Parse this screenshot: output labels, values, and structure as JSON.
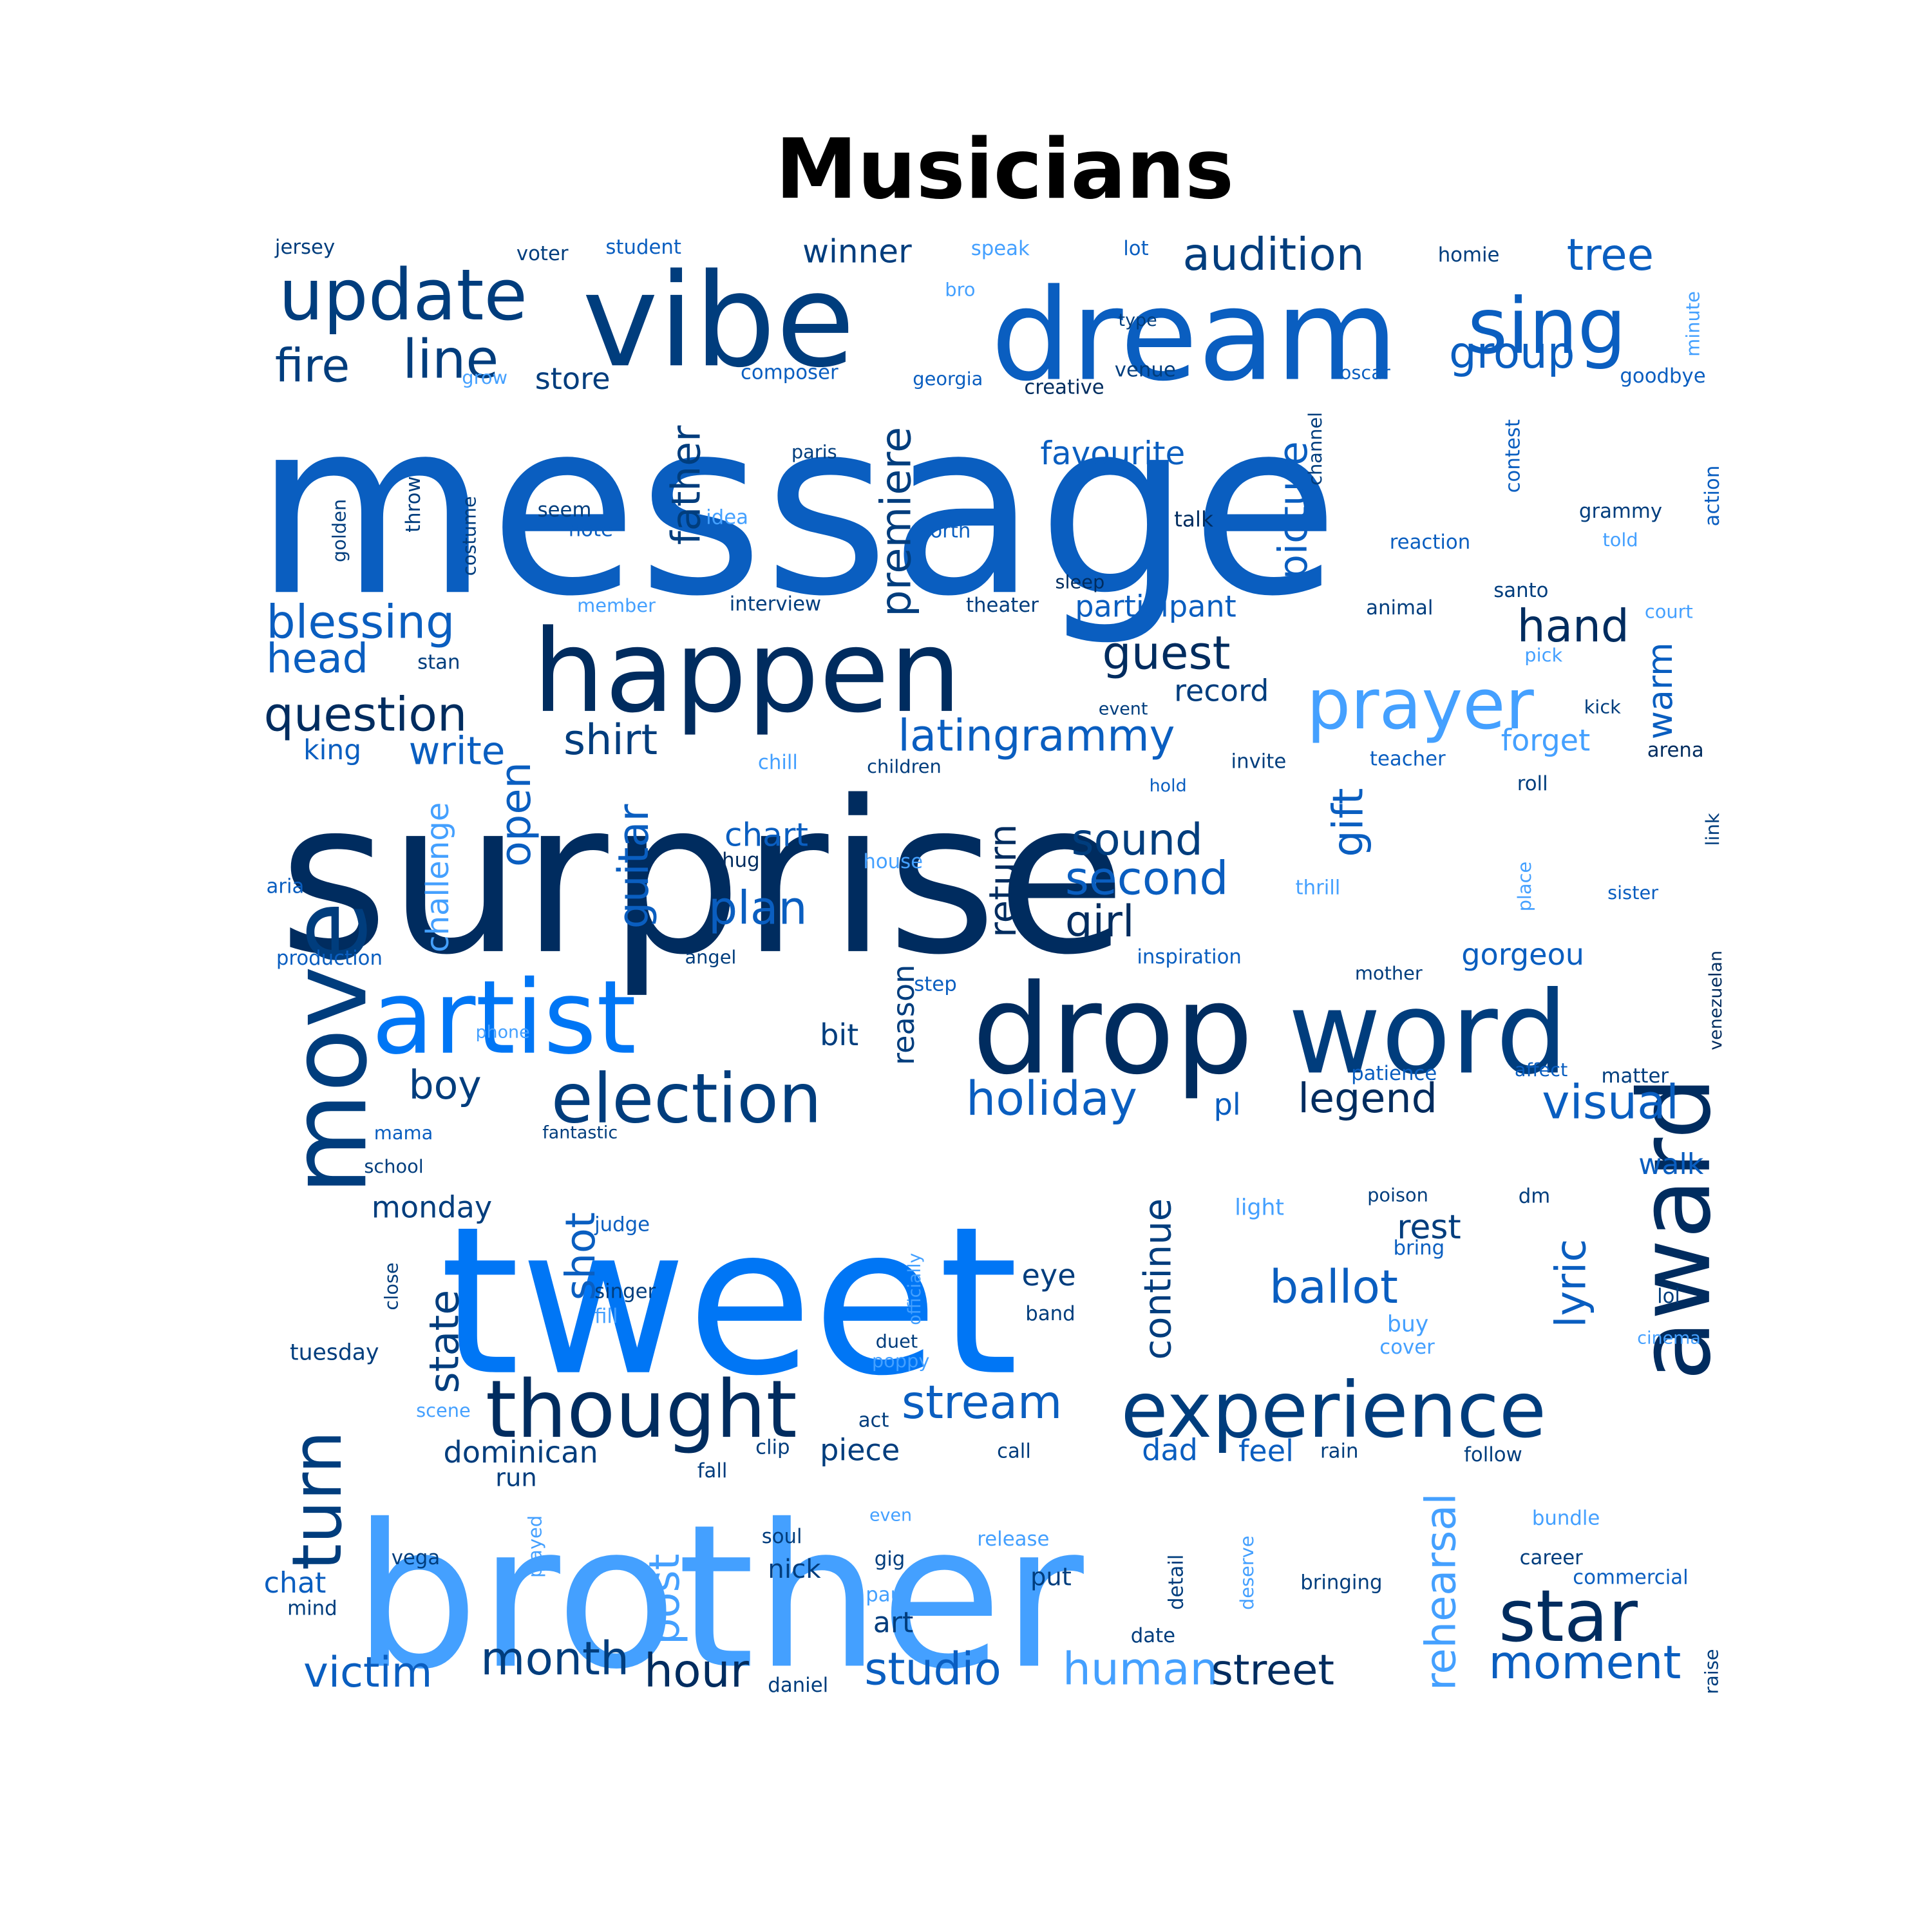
{
  "title": "Musicians",
  "palette": {
    "navy": "#002c5f",
    "dark": "#003d7d",
    "mid": "#0a5ec0",
    "bright": "#0076f5",
    "light": "#44a0ff"
  },
  "words": [
    {
      "text": "message",
      "size": 195,
      "color": "mid"
    },
    {
      "text": "surprise",
      "size": 170,
      "color": "navy"
    },
    {
      "text": "tweet",
      "size": 165,
      "color": "bright"
    },
    {
      "text": "brother",
      "size": 160,
      "color": "light"
    },
    {
      "text": "dream",
      "size": 70,
      "color": "mid"
    },
    {
      "text": "vibe",
      "size": 70,
      "color": "dark"
    },
    {
      "text": "happen",
      "size": 65,
      "color": "navy"
    },
    {
      "text": "artist",
      "size": 60,
      "color": "bright"
    },
    {
      "text": "drop",
      "size": 60,
      "color": "navy"
    },
    {
      "text": "word",
      "size": 60,
      "color": "dark"
    },
    {
      "text": "move",
      "size": 60,
      "color": "dark"
    },
    {
      "text": "award",
      "size": 55,
      "color": "navy"
    },
    {
      "text": "thought",
      "size": 50,
      "color": "navy"
    },
    {
      "text": "experience",
      "size": 50,
      "color": "dark"
    },
    {
      "text": "sing",
      "size": 50,
      "color": "mid"
    },
    {
      "text": "update",
      "size": 45,
      "color": "dark"
    },
    {
      "text": "prayer",
      "size": 45,
      "color": "light"
    },
    {
      "text": "election",
      "size": 45,
      "color": "dark"
    },
    {
      "text": "star",
      "size": 45,
      "color": "navy"
    },
    {
      "text": "turn",
      "size": 40,
      "color": "dark"
    },
    {
      "text": "blessing",
      "size": 30,
      "color": "mid"
    },
    {
      "text": "question",
      "size": 30,
      "color": "navy"
    },
    {
      "text": "premiere",
      "size": 30,
      "color": "dark"
    },
    {
      "text": "picture",
      "size": 30,
      "color": "mid"
    },
    {
      "text": "line",
      "size": 30,
      "color": "dark"
    },
    {
      "text": "audition",
      "size": 28,
      "color": "dark"
    },
    {
      "text": "guest",
      "size": 28,
      "color": "navy"
    },
    {
      "text": "tree",
      "size": 28,
      "color": "mid"
    },
    {
      "text": "group",
      "size": 28,
      "color": "mid"
    },
    {
      "text": "hand",
      "size": 28,
      "color": "navy"
    },
    {
      "text": "latingrammy",
      "size": 28,
      "color": "mid"
    },
    {
      "text": "shirt",
      "size": 28,
      "color": "dark"
    },
    {
      "text": "ballot",
      "size": 28,
      "color": "mid"
    },
    {
      "text": "stream",
      "size": 28,
      "color": "mid"
    },
    {
      "text": "father",
      "size": 28,
      "color": "dark"
    },
    {
      "text": "head",
      "size": 28,
      "color": "mid"
    },
    {
      "text": "fire",
      "size": 28,
      "color": "dark"
    },
    {
      "text": "second",
      "size": 28,
      "color": "mid"
    },
    {
      "text": "sound",
      "size": 28,
      "color": "dark"
    },
    {
      "text": "girl",
      "size": 28,
      "color": "navy"
    },
    {
      "text": "plan",
      "size": 28,
      "color": "mid"
    },
    {
      "text": "return",
      "size": 28,
      "color": "navy"
    },
    {
      "text": "guitar",
      "size": 28,
      "color": "mid"
    },
    {
      "text": "open",
      "size": 28,
      "color": "mid"
    },
    {
      "text": "holiday",
      "size": 28,
      "color": "mid"
    },
    {
      "text": "legend",
      "size": 28,
      "color": "navy"
    },
    {
      "text": "visual",
      "size": 28,
      "color": "mid"
    },
    {
      "text": "continue",
      "size": 28,
      "color": "dark"
    },
    {
      "text": "lyric",
      "size": 28,
      "color": "mid"
    },
    {
      "text": "post",
      "size": 28,
      "color": "light"
    },
    {
      "text": "rehearsal",
      "size": 28,
      "color": "light"
    },
    {
      "text": "moment",
      "size": 28,
      "color": "mid"
    },
    {
      "text": "studio",
      "size": 28,
      "color": "mid"
    },
    {
      "text": "human",
      "size": 28,
      "color": "light"
    },
    {
      "text": "street",
      "size": 28,
      "color": "navy"
    },
    {
      "text": "hour",
      "size": 28,
      "color": "navy"
    },
    {
      "text": "month",
      "size": 28,
      "color": "dark"
    },
    {
      "text": "victim",
      "size": 28,
      "color": "mid"
    },
    {
      "text": "state",
      "size": 28,
      "color": "dark"
    },
    {
      "text": "shot",
      "size": 28,
      "color": "mid"
    },
    {
      "text": "write",
      "size": 24,
      "color": "mid"
    },
    {
      "text": "boy",
      "size": 24,
      "color": "dark"
    },
    {
      "text": "gift",
      "size": 24,
      "color": "mid"
    },
    {
      "text": "warm",
      "size": 22,
      "color": "mid"
    },
    {
      "text": "rest",
      "size": 22,
      "color": "dark"
    },
    {
      "text": "favourite",
      "size": 22,
      "color": "mid"
    },
    {
      "text": "participant",
      "size": 22,
      "color": "mid"
    },
    {
      "text": "record",
      "size": 22,
      "color": "dark"
    },
    {
      "text": "chart",
      "size": 22,
      "color": "mid"
    },
    {
      "text": "winner",
      "size": 22,
      "color": "dark"
    },
    {
      "text": "store",
      "size": 22,
      "color": "dark"
    },
    {
      "text": "king",
      "size": 22,
      "color": "mid"
    },
    {
      "text": "challenge",
      "size": 22,
      "color": "light"
    },
    {
      "text": "forget",
      "size": 22,
      "color": "light"
    },
    {
      "text": "gorgeou",
      "size": 22,
      "color": "mid"
    },
    {
      "text": "bit",
      "size": 22,
      "color": "dark"
    },
    {
      "text": "reason",
      "size": 22,
      "color": "dark"
    },
    {
      "text": "pl",
      "size": 22,
      "color": "mid"
    },
    {
      "text": "eye",
      "size": 22,
      "color": "dark"
    },
    {
      "text": "monday",
      "size": 22,
      "color": "dark"
    },
    {
      "text": "walk",
      "size": 22,
      "color": "mid"
    },
    {
      "text": "feel",
      "size": 22,
      "color": "mid"
    },
    {
      "text": "dad",
      "size": 22,
      "color": "mid"
    },
    {
      "text": "piece",
      "size": 22,
      "color": "dark"
    },
    {
      "text": "dominican",
      "size": 22,
      "color": "dark"
    },
    {
      "text": "run",
      "size": 22,
      "color": "dark"
    },
    {
      "text": "chat",
      "size": 22,
      "color": "mid"
    },
    {
      "text": "art",
      "size": 22,
      "color": "dark"
    },
    {
      "text": "nick",
      "size": 20,
      "color": "dark"
    },
    {
      "text": "put",
      "size": 20,
      "color": "dark"
    },
    {
      "text": "buy",
      "size": 18,
      "color": "light"
    },
    {
      "text": "jersey",
      "size": 16,
      "color": "dark"
    },
    {
      "text": "voter",
      "size": 16,
      "color": "dark"
    },
    {
      "text": "student",
      "size": 16,
      "color": "mid"
    },
    {
      "text": "speak",
      "size": 16,
      "color": "light"
    },
    {
      "text": "lot",
      "size": 16,
      "color": "mid"
    },
    {
      "text": "homie",
      "size": 16,
      "color": "dark"
    },
    {
      "text": "bro",
      "size": 16,
      "color": "light"
    },
    {
      "text": "type",
      "size": 16,
      "color": "dark"
    },
    {
      "text": "minute",
      "size": 16,
      "color": "light"
    },
    {
      "text": "grow",
      "size": 16,
      "color": "light"
    },
    {
      "text": "composer",
      "size": 16,
      "color": "mid"
    },
    {
      "text": "georgia",
      "size": 16,
      "color": "mid"
    },
    {
      "text": "venue",
      "size": 16,
      "color": "dark"
    },
    {
      "text": "oscar",
      "size": 16,
      "color": "mid"
    },
    {
      "text": "goodbye",
      "size": 16,
      "color": "mid"
    },
    {
      "text": "creative",
      "size": 16,
      "color": "navy"
    },
    {
      "text": "channel",
      "size": 16,
      "color": "dark"
    },
    {
      "text": "contest",
      "size": 16,
      "color": "mid"
    },
    {
      "text": "paris",
      "size": 16,
      "color": "dark"
    },
    {
      "text": "throw",
      "size": 16,
      "color": "dark"
    },
    {
      "text": "golden",
      "size": 16,
      "color": "dark"
    },
    {
      "text": "costume",
      "size": 16,
      "color": "dark"
    },
    {
      "text": "seem",
      "size": 16,
      "color": "dark"
    },
    {
      "text": "note",
      "size": 16,
      "color": "mid"
    },
    {
      "text": "idea",
      "size": 16,
      "color": "light"
    },
    {
      "text": "worth",
      "size": 16,
      "color": "mid"
    },
    {
      "text": "talk",
      "size": 16,
      "color": "navy"
    },
    {
      "text": "grammy",
      "size": 16,
      "color": "dark"
    },
    {
      "text": "reaction",
      "size": 16,
      "color": "mid"
    },
    {
      "text": "told",
      "size": 16,
      "color": "light"
    },
    {
      "text": "action",
      "size": 16,
      "color": "mid"
    },
    {
      "text": "sleep",
      "size": 16,
      "color": "navy"
    },
    {
      "text": "santo",
      "size": 16,
      "color": "dark"
    },
    {
      "text": "member",
      "size": 16,
      "color": "light"
    },
    {
      "text": "interview",
      "size": 16,
      "color": "dark"
    },
    {
      "text": "theater",
      "size": 16,
      "color": "dark"
    },
    {
      "text": "animal",
      "size": 16,
      "color": "dark"
    },
    {
      "text": "court",
      "size": 16,
      "color": "light"
    },
    {
      "text": "pick",
      "size": 16,
      "color": "light"
    },
    {
      "text": "stan",
      "size": 16,
      "color": "dark"
    },
    {
      "text": "event",
      "size": 16,
      "color": "dark"
    },
    {
      "text": "kick",
      "size": 16,
      "color": "dark"
    },
    {
      "text": "arena",
      "size": 16,
      "color": "navy"
    },
    {
      "text": "chill",
      "size": 16,
      "color": "light"
    },
    {
      "text": "children",
      "size": 16,
      "color": "dark"
    },
    {
      "text": "invite",
      "size": 16,
      "color": "dark"
    },
    {
      "text": "teacher",
      "size": 16,
      "color": "mid"
    },
    {
      "text": "hold",
      "size": 16,
      "color": "mid"
    },
    {
      "text": "roll",
      "size": 16,
      "color": "dark"
    },
    {
      "text": "hug",
      "size": 16,
      "color": "navy"
    },
    {
      "text": "house",
      "size": 16,
      "color": "light"
    },
    {
      "text": "place",
      "size": 16,
      "color": "light"
    },
    {
      "text": "link",
      "size": 16,
      "color": "dark"
    },
    {
      "text": "aria",
      "size": 16,
      "color": "mid"
    },
    {
      "text": "thrill",
      "size": 16,
      "color": "light"
    },
    {
      "text": "sister",
      "size": 16,
      "color": "mid"
    },
    {
      "text": "production",
      "size": 16,
      "color": "mid"
    },
    {
      "text": "angel",
      "size": 16,
      "color": "dark"
    },
    {
      "text": "inspiration",
      "size": 16,
      "color": "mid"
    },
    {
      "text": "venezuelan",
      "size": 16,
      "color": "navy"
    },
    {
      "text": "step",
      "size": 16,
      "color": "mid"
    },
    {
      "text": "mother",
      "size": 16,
      "color": "dark"
    },
    {
      "text": "phone",
      "size": 16,
      "color": "light"
    },
    {
      "text": "patience",
      "size": 16,
      "color": "mid"
    },
    {
      "text": "affect",
      "size": 16,
      "color": "mid"
    },
    {
      "text": "matter",
      "size": 16,
      "color": "dark"
    },
    {
      "text": "mama",
      "size": 16,
      "color": "mid"
    },
    {
      "text": "fantastic",
      "size": 16,
      "color": "dark"
    },
    {
      "text": "school",
      "size": 16,
      "color": "dark"
    },
    {
      "text": "judge",
      "size": 16,
      "color": "mid"
    },
    {
      "text": "light",
      "size": 16,
      "color": "light"
    },
    {
      "text": "poison",
      "size": 16,
      "color": "dark"
    },
    {
      "text": "dm",
      "size": 16,
      "color": "dark"
    },
    {
      "text": "officially",
      "size": 16,
      "color": "light"
    },
    {
      "text": "close",
      "size": 16,
      "color": "dark"
    },
    {
      "text": "bring",
      "size": 16,
      "color": "mid"
    },
    {
      "text": "singer",
      "size": 16,
      "color": "dark"
    },
    {
      "text": "fill",
      "size": 16,
      "color": "light"
    },
    {
      "text": "band",
      "size": 16,
      "color": "dark"
    },
    {
      "text": "lol",
      "size": 16,
      "color": "dark"
    },
    {
      "text": "tuesday",
      "size": 16,
      "color": "dark"
    },
    {
      "text": "duet",
      "size": 16,
      "color": "dark"
    },
    {
      "text": "cover",
      "size": 16,
      "color": "light"
    },
    {
      "text": "cinema",
      "size": 16,
      "color": "light"
    },
    {
      "text": "poppy",
      "size": 16,
      "color": "light"
    },
    {
      "text": "scene",
      "size": 16,
      "color": "light"
    },
    {
      "text": "act",
      "size": 16,
      "color": "dark"
    },
    {
      "text": "clip",
      "size": 16,
      "color": "dark"
    },
    {
      "text": "call",
      "size": 16,
      "color": "dark"
    },
    {
      "text": "rain",
      "size": 16,
      "color": "dark"
    },
    {
      "text": "follow",
      "size": 16,
      "color": "dark"
    },
    {
      "text": "fall",
      "size": 16,
      "color": "dark"
    },
    {
      "text": "played",
      "size": 16,
      "color": "light"
    },
    {
      "text": "even",
      "size": 16,
      "color": "light"
    },
    {
      "text": "bundle",
      "size": 16,
      "color": "light"
    },
    {
      "text": "soul",
      "size": 16,
      "color": "dark"
    },
    {
      "text": "release",
      "size": 16,
      "color": "light"
    },
    {
      "text": "detail",
      "size": 16,
      "color": "dark"
    },
    {
      "text": "deserve",
      "size": 16,
      "color": "light"
    },
    {
      "text": "career",
      "size": 16,
      "color": "dark"
    },
    {
      "text": "vega",
      "size": 16,
      "color": "dark"
    },
    {
      "text": "gig",
      "size": 16,
      "color": "dark"
    },
    {
      "text": "bringing",
      "size": 16,
      "color": "dark"
    },
    {
      "text": "commercial",
      "size": 16,
      "color": "mid"
    },
    {
      "text": "mind",
      "size": 16,
      "color": "dark"
    },
    {
      "text": "paul",
      "size": 16,
      "color": "light"
    },
    {
      "text": "date",
      "size": 16,
      "color": "dark"
    },
    {
      "text": "raise",
      "size": 16,
      "color": "dark"
    },
    {
      "text": "daniel",
      "size": 16,
      "color": "dark"
    }
  ]
}
